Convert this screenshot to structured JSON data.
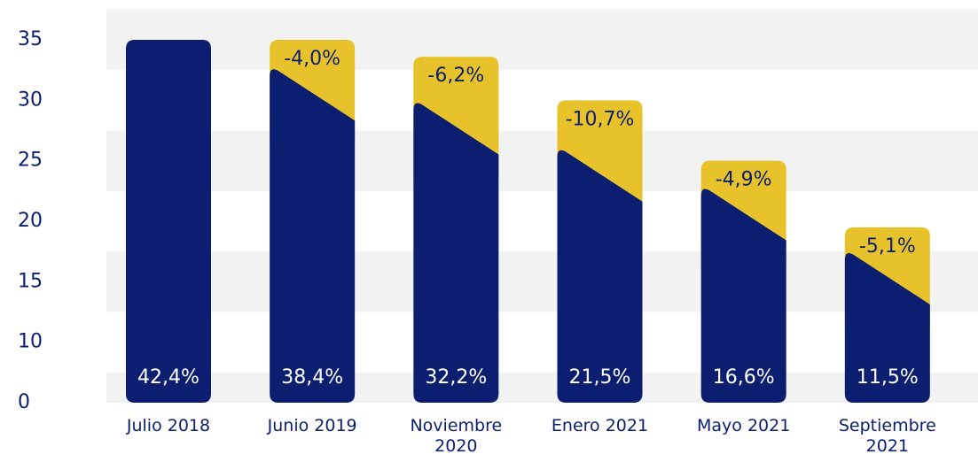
{
  "chart_data": {
    "type": "bar",
    "categories": [
      "Julio 2018",
      "Junio 2019",
      "Noviembre\n2020",
      "Enero 2021",
      "Mayo 2021",
      "Septiembre\n2021"
    ],
    "series": [
      {
        "color": "#0b1e6f",
        "values": [
          35,
          30.3,
          27.5,
          23.6,
          20.4,
          15.1
        ]
      },
      {
        "color": "#e8c22b",
        "values": [
          null,
          4.7,
          6.1,
          6.4,
          4.6,
          4.4
        ]
      }
    ],
    "bar_labels": [
      "42,4%",
      "38,4%",
      "32,2%",
      "21,5%",
      "16,6%",
      "11,5%"
    ],
    "change_labels": [
      null,
      "-4,0%",
      "-6,2%",
      "-10,7%",
      "-4,9%",
      "-5,1%"
    ],
    "ylim": [
      0,
      35
    ],
    "yticks": [
      0,
      10,
      15,
      20,
      25,
      30,
      35
    ],
    "grid": true
  }
}
